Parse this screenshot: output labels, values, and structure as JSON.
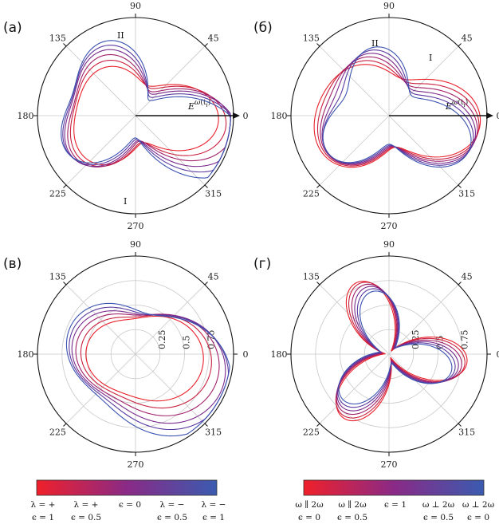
{
  "chart_data": [
    {
      "panel": "(а)",
      "type": "polar-line",
      "theta_ticks": [
        "90",
        "45",
        "0",
        "315",
        "270",
        "225",
        "180",
        "135"
      ],
      "annotations": [
        "II",
        "I"
      ],
      "field_label": "E",
      "field_sup": "ω",
      "field_arg": "(t",
      "field_sub": "i",
      "field_close": ")",
      "series": [
        {
          "color": "#e8202a",
          "r0": 0.55,
          "harmonics": [
            [
              2,
              0.18,
              0.0
            ],
            [
              3,
              0.12,
              0.3
            ]
          ]
        },
        {
          "color": "#c8203f",
          "r0": 0.58,
          "harmonics": [
            [
              2,
              0.2,
              0.15
            ],
            [
              3,
              0.15,
              0.45
            ]
          ]
        },
        {
          "color": "#a0206a",
          "r0": 0.6,
          "harmonics": [
            [
              2,
              0.22,
              0.3
            ],
            [
              3,
              0.18,
              0.6
            ]
          ]
        },
        {
          "color": "#7a2a8c",
          "r0": 0.62,
          "harmonics": [
            [
              2,
              0.24,
              0.45
            ],
            [
              3,
              0.2,
              0.75
            ]
          ]
        },
        {
          "color": "#5a3aa0",
          "r0": 0.63,
          "harmonics": [
            [
              2,
              0.26,
              0.6
            ],
            [
              3,
              0.22,
              0.9
            ]
          ]
        },
        {
          "color": "#3a52b0",
          "r0": 0.64,
          "harmonics": [
            [
              2,
              0.28,
              0.75
            ],
            [
              3,
              0.24,
              1.05
            ]
          ]
        }
      ]
    },
    {
      "panel": "(б)",
      "type": "polar-line",
      "theta_ticks": [
        "90",
        "45",
        "0",
        "315",
        "270",
        "225",
        "180",
        "135"
      ],
      "annotations": [
        "II",
        "I"
      ],
      "field_label": "E",
      "field_sup": "ω",
      "field_arg": "(t",
      "field_sub": "i",
      "field_close": ")",
      "series": [
        {
          "color": "#e8202a",
          "r0": 0.62,
          "harmonics": [
            [
              2,
              0.22,
              0.0
            ],
            [
              3,
              0.1,
              0.5
            ]
          ]
        },
        {
          "color": "#c8203f",
          "r0": 0.61,
          "harmonics": [
            [
              2,
              0.2,
              0.15
            ],
            [
              3,
              0.12,
              0.65
            ]
          ]
        },
        {
          "color": "#a0206a",
          "r0": 0.6,
          "harmonics": [
            [
              2,
              0.18,
              0.3
            ],
            [
              3,
              0.14,
              0.8
            ]
          ]
        },
        {
          "color": "#7a2a8c",
          "r0": 0.59,
          "harmonics": [
            [
              2,
              0.16,
              0.45
            ],
            [
              3,
              0.16,
              0.95
            ]
          ]
        },
        {
          "color": "#5a3aa0",
          "r0": 0.58,
          "harmonics": [
            [
              2,
              0.14,
              0.6
            ],
            [
              3,
              0.18,
              1.1
            ]
          ]
        },
        {
          "color": "#3a52b0",
          "r0": 0.57,
          "harmonics": [
            [
              2,
              0.12,
              0.75
            ],
            [
              3,
              0.2,
              1.25
            ]
          ]
        }
      ]
    },
    {
      "panel": "(в)",
      "type": "polar-line",
      "theta_ticks": [
        "90",
        "45",
        "0",
        "315",
        "270",
        "225",
        "180",
        "135"
      ],
      "r_ticks": [
        "0.25",
        "0.5",
        "0.75"
      ],
      "series": [
        {
          "color": "#e8202a",
          "r0": 0.5,
          "harmonics": [
            [
              1,
              0.1,
              0.4
            ],
            [
              2,
              0.1,
              0.2
            ]
          ]
        },
        {
          "color": "#c8203f",
          "r0": 0.55,
          "harmonics": [
            [
              1,
              0.12,
              0.5
            ],
            [
              2,
              0.12,
              0.35
            ]
          ]
        },
        {
          "color": "#a0206a",
          "r0": 0.6,
          "harmonics": [
            [
              1,
              0.14,
              0.6
            ],
            [
              2,
              0.14,
              0.5
            ]
          ]
        },
        {
          "color": "#7a2a8c",
          "r0": 0.64,
          "harmonics": [
            [
              1,
              0.16,
              0.7
            ],
            [
              2,
              0.16,
              0.65
            ]
          ]
        },
        {
          "color": "#5a3aa0",
          "r0": 0.67,
          "harmonics": [
            [
              1,
              0.17,
              0.8
            ],
            [
              2,
              0.17,
              0.8
            ]
          ]
        },
        {
          "color": "#3a52b0",
          "r0": 0.7,
          "harmonics": [
            [
              1,
              0.18,
              0.9
            ],
            [
              2,
              0.18,
              0.95
            ]
          ]
        }
      ]
    },
    {
      "panel": "(г)",
      "type": "polar-line",
      "theta_ticks": [
        "90",
        "45",
        "0",
        "315",
        "270",
        "225",
        "180",
        "135"
      ],
      "r_ticks": [
        "0.25",
        "0.5",
        "0.75"
      ],
      "series": [
        {
          "color": "#e8202a",
          "r0": 0.42,
          "harmonics": [
            [
              3,
              0.38,
              0.3
            ]
          ]
        },
        {
          "color": "#c8203f",
          "r0": 0.42,
          "harmonics": [
            [
              3,
              0.36,
              0.4
            ]
          ]
        },
        {
          "color": "#a0206a",
          "r0": 0.41,
          "harmonics": [
            [
              3,
              0.34,
              0.5
            ]
          ]
        },
        {
          "color": "#7a2a8c",
          "r0": 0.4,
          "harmonics": [
            [
              3,
              0.32,
              0.6
            ]
          ]
        },
        {
          "color": "#5a3aa0",
          "r0": 0.39,
          "harmonics": [
            [
              3,
              0.3,
              0.7
            ]
          ]
        },
        {
          "color": "#3a52b0",
          "r0": 0.38,
          "harmonics": [
            [
              3,
              0.28,
              0.8
            ]
          ]
        }
      ]
    }
  ],
  "colorbars": [
    {
      "colors": [
        "#f0202a",
        "#8a2a86",
        "#3a5bb0"
      ],
      "labels_top": [
        "λ = +",
        "λ = +",
        "ϵ = 0",
        "λ = −",
        "λ = −"
      ],
      "labels_bottom": [
        "ϵ = 1",
        "ϵ = 0.5",
        "",
        "ϵ = 0.5",
        "ϵ = 1"
      ]
    },
    {
      "colors": [
        "#f0202a",
        "#8a2a86",
        "#3a5bb0"
      ],
      "labels_top": [
        "ω ∥ 2ω",
        "ω ∥ 2ω",
        "ϵ = 1",
        "ω ⊥ 2ω",
        "ω ⊥ 2ω"
      ],
      "labels_bottom": [
        "ϵ = 0",
        "ϵ = 0.5",
        "",
        "ϵ = 0.5",
        "ϵ = 0"
      ]
    }
  ]
}
